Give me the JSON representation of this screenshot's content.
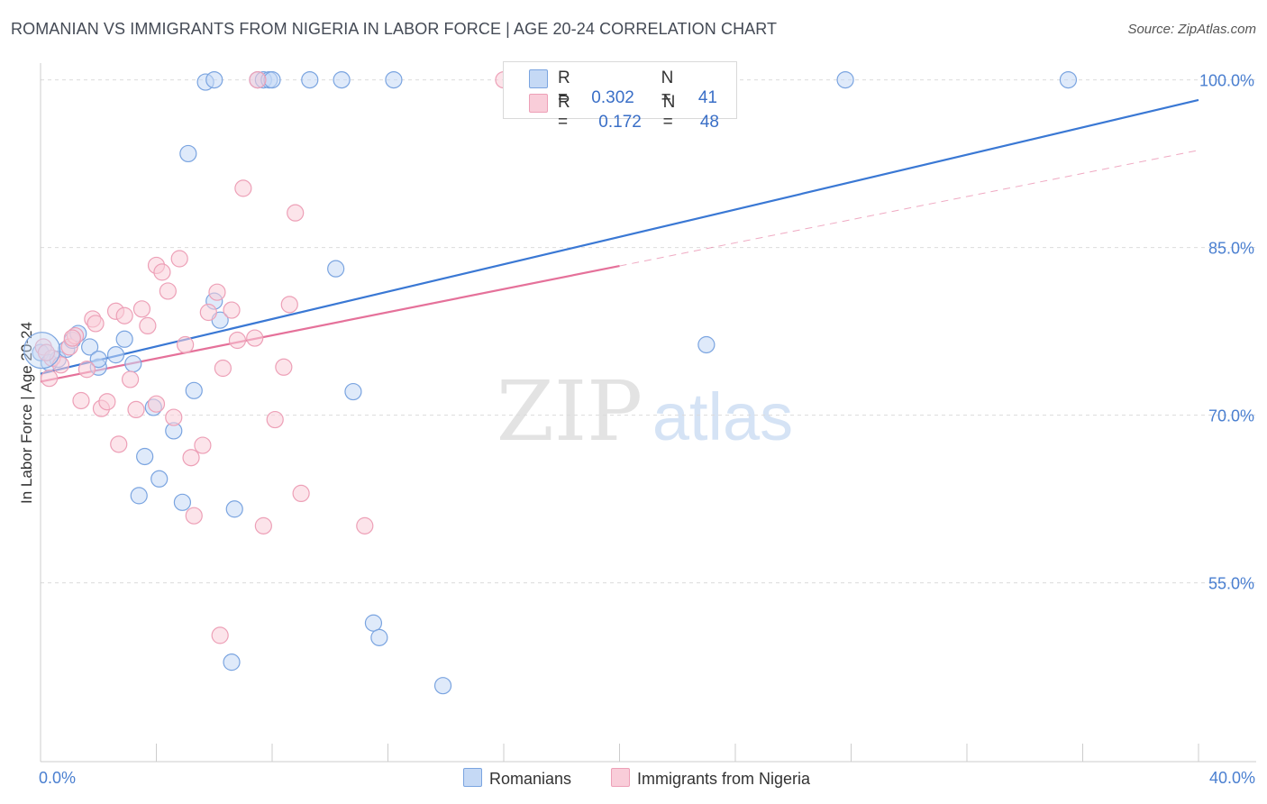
{
  "title": "ROMANIAN VS IMMIGRANTS FROM NIGERIA IN LABOR FORCE | AGE 20-24 CORRELATION CHART",
  "source": "Source: ZipAtlas.com",
  "watermark": {
    "zip": "ZIP",
    "atlas": "atlas"
  },
  "legend": {
    "blue": {
      "r_label": "R =",
      "r_value": "0.302",
      "n_label": "N =",
      "n_value": "41"
    },
    "pink": {
      "r_label": "R =",
      "r_value": "0.172",
      "n_label": "N =",
      "n_value": "48"
    }
  },
  "colors": {
    "blue": "#3a78d4",
    "blue_fill": "#c5d9f5",
    "pink": "#e5719a",
    "pink_fill": "#f9cdd9",
    "tick_text": "#4a7fd0"
  },
  "chart_data": {
    "type": "scatter",
    "title": "ROMANIAN VS IMMIGRANTS FROM NIGERIA IN LABOR FORCE | AGE 20-24 CORRELATION CHART",
    "xlabel": "",
    "ylabel": "In Labor Force | Age 20-24",
    "xlim": [
      0,
      40
    ],
    "ylim": [
      39,
      101.5
    ],
    "x_tick_labels": [
      "0.0%",
      "40.0%"
    ],
    "y_ticks": [
      55,
      70,
      85,
      100
    ],
    "y_tick_labels": [
      "55.0%",
      "70.0%",
      "85.0%",
      "100.0%"
    ],
    "series": [
      {
        "name": "Romanians",
        "color": "blue",
        "points": [
          [
            0.0,
            75.6
          ],
          [
            0.3,
            74.7
          ],
          [
            0.6,
            75.0
          ],
          [
            0.9,
            75.9
          ],
          [
            1.1,
            76.7
          ],
          [
            1.3,
            77.3
          ],
          [
            1.7,
            76.1
          ],
          [
            2.0,
            74.3
          ],
          [
            2.0,
            75.0
          ],
          [
            2.6,
            75.4
          ],
          [
            2.9,
            76.8
          ],
          [
            3.2,
            74.6
          ],
          [
            3.4,
            62.8
          ],
          [
            3.6,
            66.3
          ],
          [
            4.1,
            64.3
          ],
          [
            3.9,
            70.7
          ],
          [
            4.6,
            68.6
          ],
          [
            4.9,
            62.2
          ],
          [
            5.1,
            93.4
          ],
          [
            5.3,
            72.2
          ],
          [
            5.7,
            99.8
          ],
          [
            6.0,
            80.2
          ],
          [
            6.2,
            78.5
          ],
          [
            6.0,
            100.0
          ],
          [
            6.6,
            47.9
          ],
          [
            6.7,
            61.6
          ],
          [
            7.5,
            100.0
          ],
          [
            7.7,
            100.0
          ],
          [
            7.9,
            100.0
          ],
          [
            8.0,
            100.0
          ],
          [
            9.3,
            100.0
          ],
          [
            10.2,
            83.1
          ],
          [
            10.4,
            100.0
          ],
          [
            10.8,
            72.1
          ],
          [
            11.5,
            51.4
          ],
          [
            11.7,
            50.1
          ],
          [
            12.2,
            100.0
          ],
          [
            13.9,
            45.8
          ],
          [
            23.0,
            76.3
          ],
          [
            27.8,
            100.0
          ],
          [
            35.5,
            100.0
          ]
        ],
        "trend": {
          "x0": 0.0,
          "y0": 73.7,
          "x1": 40.0,
          "y1": 98.2
        }
      },
      {
        "name": "Immigrants from Nigeria",
        "color": "pink",
        "points": [
          [
            0.1,
            76.1
          ],
          [
            0.3,
            73.3
          ],
          [
            0.4,
            75.1
          ],
          [
            0.7,
            74.5
          ],
          [
            1.0,
            76.1
          ],
          [
            1.2,
            77.1
          ],
          [
            1.4,
            71.3
          ],
          [
            1.6,
            74.1
          ],
          [
            1.8,
            78.6
          ],
          [
            1.9,
            78.2
          ],
          [
            2.1,
            70.6
          ],
          [
            2.3,
            71.2
          ],
          [
            2.6,
            79.3
          ],
          [
            2.7,
            67.4
          ],
          [
            2.9,
            78.9
          ],
          [
            3.1,
            73.2
          ],
          [
            3.3,
            70.5
          ],
          [
            3.5,
            79.5
          ],
          [
            3.7,
            78.0
          ],
          [
            4.0,
            83.4
          ],
          [
            4.2,
            82.8
          ],
          [
            4.4,
            81.1
          ],
          [
            4.0,
            71.0
          ],
          [
            4.6,
            69.8
          ],
          [
            4.8,
            84.0
          ],
          [
            5.0,
            76.3
          ],
          [
            5.2,
            66.2
          ],
          [
            5.3,
            61.0
          ],
          [
            5.6,
            67.3
          ],
          [
            5.8,
            79.2
          ],
          [
            6.1,
            81.0
          ],
          [
            6.2,
            50.3
          ],
          [
            6.3,
            74.2
          ],
          [
            6.6,
            79.4
          ],
          [
            6.8,
            76.7
          ],
          [
            7.0,
            90.3
          ],
          [
            7.4,
            76.9
          ],
          [
            7.5,
            100.0
          ],
          [
            7.7,
            60.1
          ],
          [
            8.1,
            69.6
          ],
          [
            8.4,
            74.3
          ],
          [
            8.6,
            79.9
          ],
          [
            8.8,
            88.1
          ],
          [
            9.0,
            63.0
          ],
          [
            11.2,
            60.1
          ],
          [
            16.0,
            100.0
          ],
          [
            0.2,
            75.6
          ],
          [
            1.1,
            76.9
          ]
        ],
        "trend": {
          "x0": 0.0,
          "y0": 73.0,
          "x1": 40.0,
          "y1": 93.7
        },
        "trend_solid_until_x": 20.0
      }
    ]
  },
  "bottom_legend": {
    "blue_label": "Romanians",
    "pink_label": "Immigrants from Nigeria"
  }
}
